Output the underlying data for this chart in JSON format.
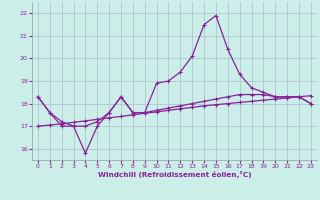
{
  "xlabel": "Windchill (Refroidissement éolien,°C)",
  "background_color": "#cceee8",
  "grid_color": "#aabbcc",
  "line_color": "#882299",
  "ylim": [
    15.5,
    22.5
  ],
  "yticks": [
    16,
    17,
    18,
    19,
    20,
    21,
    22
  ],
  "xticks": [
    0,
    1,
    2,
    3,
    4,
    5,
    6,
    7,
    8,
    9,
    10,
    11,
    12,
    13,
    14,
    15,
    16,
    17,
    18,
    19,
    20,
    21,
    22,
    23
  ],
  "x_all": [
    0,
    1,
    2,
    3,
    4,
    5,
    6,
    7,
    8,
    9,
    10,
    11,
    12,
    13,
    14,
    15,
    16,
    17,
    18,
    19,
    20,
    21,
    22,
    23
  ],
  "y_spiky": [
    18.3,
    17.6,
    17.0,
    17.0,
    15.8,
    17.0,
    17.6,
    18.3,
    17.6,
    17.6,
    18.9,
    19.0,
    19.4,
    20.1,
    21.5,
    21.9,
    20.4,
    19.3,
    18.7,
    18.5,
    18.3,
    18.3,
    18.3,
    18.0
  ],
  "y_flat": [
    18.3,
    17.6,
    17.2,
    17.0,
    17.0,
    17.2,
    17.6,
    18.3,
    17.6,
    17.6,
    17.7,
    17.8,
    17.9,
    18.0,
    18.1,
    18.2,
    18.3,
    18.4,
    18.4,
    18.4,
    18.3,
    18.3,
    18.3,
    18.0
  ],
  "y_linear": [
    17.0,
    17.05,
    17.1,
    17.17,
    17.23,
    17.3,
    17.37,
    17.43,
    17.5,
    17.57,
    17.63,
    17.7,
    17.77,
    17.83,
    17.9,
    17.95,
    18.0,
    18.05,
    18.1,
    18.15,
    18.2,
    18.25,
    18.3,
    18.35
  ]
}
